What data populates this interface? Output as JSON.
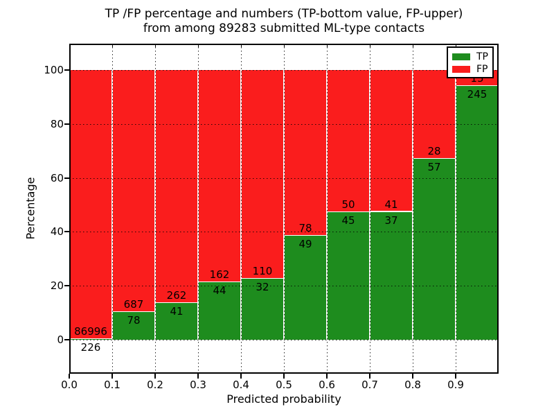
{
  "title": {
    "line1": "TP /FP percentage and numbers (TP-bottom value, FP-upper)",
    "line2": "from among 89283 submitted ML-type contacts"
  },
  "axes": {
    "ylabel": "Percentage",
    "xlabel": "Predicted probability",
    "yticks": [
      "0",
      "20",
      "40",
      "60",
      "80",
      "100"
    ],
    "xticks": [
      "0.0",
      "0.1",
      "0.2",
      "0.3",
      "0.4",
      "0.5",
      "0.6",
      "0.7",
      "0.8",
      "0.9"
    ]
  },
  "legend": {
    "items": [
      {
        "label": "TP",
        "color": "#1e8c1e"
      },
      {
        "label": "FP",
        "color": "#fa1d1d"
      }
    ],
    "position": "upper right"
  },
  "colors": {
    "tp_green": "#1e8c1e",
    "fp_red": "#fa1d1d",
    "grid": "#000000",
    "background": "#ffffff"
  },
  "chart_data": {
    "type": "bar",
    "stacked": true,
    "normalized": "percent_of_bin",
    "title": "TP /FP percentage and numbers (TP-bottom value, FP-upper) from among 89283 submitted ML-type contacts",
    "xlabel": "Predicted probability",
    "ylabel": "Percentage",
    "total_contacts": 89283,
    "bins": [
      "0.0-0.1",
      "0.1-0.2",
      "0.2-0.3",
      "0.3-0.4",
      "0.4-0.5",
      "0.5-0.6",
      "0.6-0.7",
      "0.7-0.8",
      "0.8-0.9",
      "0.9-1.0"
    ],
    "bin_left_edges": [
      0.0,
      0.1,
      0.2,
      0.3,
      0.4,
      0.5,
      0.6,
      0.7,
      0.8,
      0.9
    ],
    "series": [
      {
        "name": "TP",
        "color": "#1e8c1e",
        "counts": [
          226,
          78,
          41,
          44,
          32,
          49,
          45,
          37,
          57,
          245
        ],
        "percent_of_bin": [
          0.3,
          10.2,
          13.5,
          21.4,
          22.5,
          38.6,
          47.4,
          47.4,
          67.1,
          94.2
        ]
      },
      {
        "name": "FP",
        "color": "#fa1d1d",
        "counts": [
          86996,
          687,
          262,
          162,
          110,
          78,
          50,
          41,
          28,
          15
        ],
        "percent_of_bin": [
          99.7,
          89.8,
          86.5,
          78.6,
          77.5,
          61.4,
          52.6,
          52.6,
          32.9,
          5.8
        ]
      }
    ],
    "ytick_values": [
      0,
      20,
      40,
      60,
      80,
      100
    ],
    "xtick_values": [
      0.0,
      0.1,
      0.2,
      0.3,
      0.4,
      0.5,
      0.6,
      0.7,
      0.8,
      0.9
    ],
    "xlim": [
      0.0,
      1.0
    ],
    "grid": "dotted, both axes, drawn over bars",
    "legend_position": "upper right",
    "annotation_note": "Each bar is labeled with the FP count just above the TP/FP boundary and the TP count just below it; the FP label '15' of the 0.9-1.0 bin is mostly hidden behind the legend; the TP label '226' of the first bin sits below the 0% line."
  }
}
